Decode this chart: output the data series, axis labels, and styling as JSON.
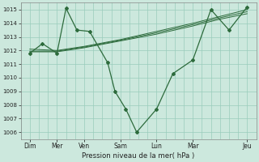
{
  "bg_color": "#cce8dd",
  "grid_color": "#99ccbb",
  "line_color": "#2d6b3c",
  "xlabel": "Pression niveau de la mer( hPa )",
  "ylim": [
    1005.5,
    1015.5
  ],
  "yticks": [
    1006,
    1007,
    1008,
    1009,
    1010,
    1011,
    1012,
    1013,
    1014,
    1015
  ],
  "xlim": [
    0,
    13.0
  ],
  "xtick_positions": [
    0.5,
    2.0,
    3.5,
    5.5,
    7.5,
    9.5,
    12.5
  ],
  "xtick_labels": [
    "Dim",
    "Mer",
    "Ven",
    "Sam",
    "Lun",
    "Mar",
    "Jeu"
  ],
  "series1_x": [
    0.5,
    1.2,
    2.0,
    2.5,
    3.1,
    3.8,
    4.8,
    5.2,
    5.8,
    6.4,
    7.5,
    8.4,
    9.5,
    10.5,
    11.5,
    12.5
  ],
  "series1_y": [
    1011.8,
    1012.5,
    1011.8,
    1015.1,
    1013.5,
    1013.4,
    1011.1,
    1009.0,
    1007.7,
    1006.0,
    1007.7,
    1010.3,
    1011.3,
    1015.0,
    1013.5,
    1015.2
  ],
  "series2_x": [
    0.5,
    2.0,
    3.5,
    5.5,
    7.5,
    9.5,
    11.0,
    12.5
  ],
  "series2_y": [
    1011.9,
    1011.9,
    1012.2,
    1012.7,
    1013.2,
    1013.8,
    1014.3,
    1014.7
  ],
  "series3_x": [
    0.5,
    2.0,
    3.5,
    5.5,
    7.5,
    9.5,
    11.0,
    12.5
  ],
  "series3_y": [
    1012.1,
    1012.0,
    1012.3,
    1012.8,
    1013.4,
    1014.0,
    1014.5,
    1015.0
  ],
  "series4_x": [
    0.5,
    2.0,
    3.5,
    5.5,
    7.5,
    9.5,
    11.0,
    12.5
  ],
  "series4_y": [
    1011.95,
    1011.95,
    1012.25,
    1012.75,
    1013.3,
    1013.9,
    1014.4,
    1014.85
  ]
}
